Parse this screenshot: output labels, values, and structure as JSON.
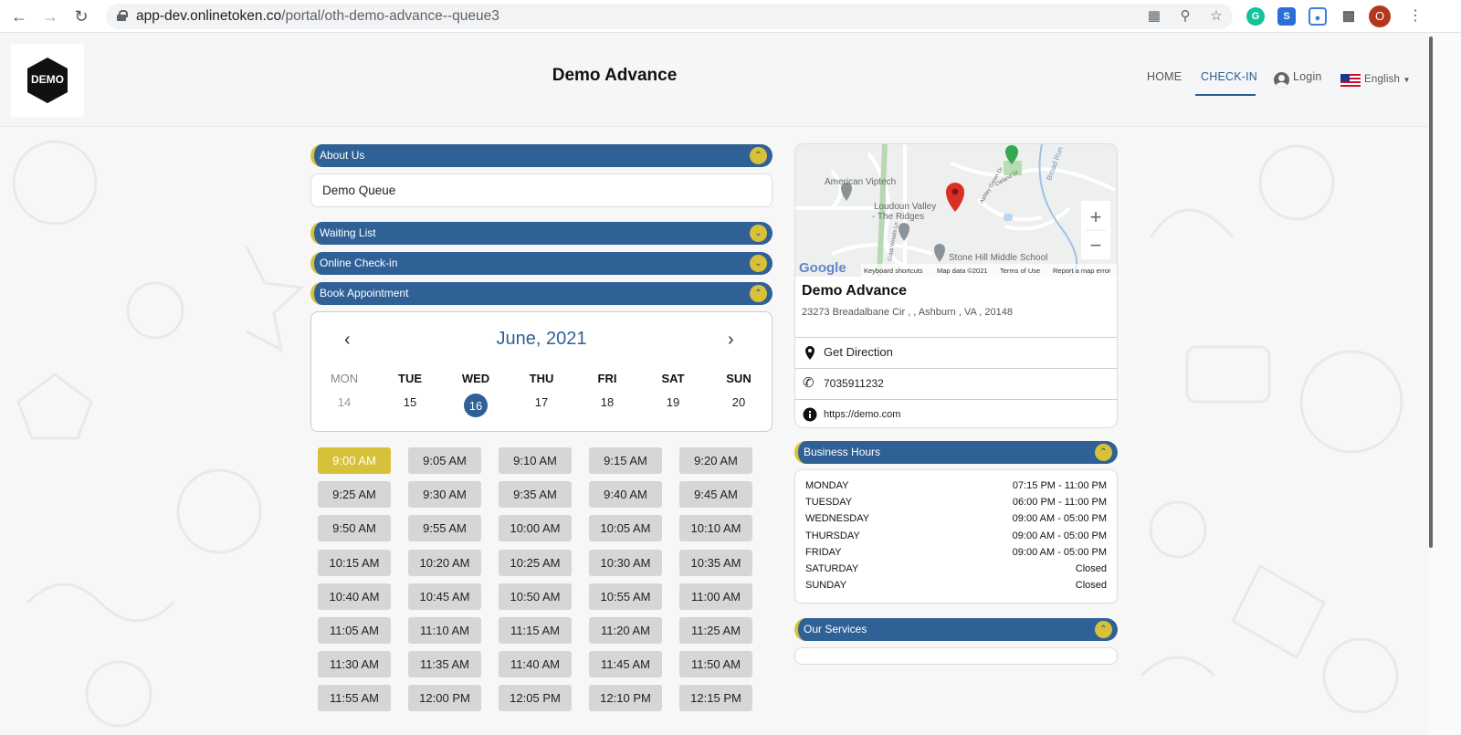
{
  "browser": {
    "url_host": "app-dev.onlinetoken.co",
    "url_path": "/portal/oth-demo-advance--queue3",
    "profile_initial": "O",
    "extensions": [
      "grammarly-icon",
      "s-extension-icon",
      "screencast-icon",
      "puzzle-icon"
    ]
  },
  "header": {
    "logo_text": "DEMO",
    "title": "Demo Advance",
    "nav": {
      "home": "HOME",
      "checkin": "CHECK-IN",
      "login": "Login",
      "language": "English"
    }
  },
  "left": {
    "about": {
      "label": "About Us",
      "content": "Demo Queue"
    },
    "waiting": {
      "label": "Waiting List"
    },
    "online": {
      "label": "Online Check-in"
    },
    "book": {
      "label": "Book Appointment"
    }
  },
  "calendar": {
    "month": "June, 2021",
    "days": [
      {
        "dow": "MON",
        "date": "14"
      },
      {
        "dow": "TUE",
        "date": "15"
      },
      {
        "dow": "WED",
        "date": "16"
      },
      {
        "dow": "THU",
        "date": "17"
      },
      {
        "dow": "FRI",
        "date": "18"
      },
      {
        "dow": "SAT",
        "date": "19"
      },
      {
        "dow": "SUN",
        "date": "20"
      }
    ],
    "selected": "16"
  },
  "slots": [
    "9:00 AM",
    "9:05 AM",
    "9:10 AM",
    "9:15 AM",
    "9:20 AM",
    "9:25 AM",
    "9:30 AM",
    "9:35 AM",
    "9:40 AM",
    "9:45 AM",
    "9:50 AM",
    "9:55 AM",
    "10:00 AM",
    "10:05 AM",
    "10:10 AM",
    "10:15 AM",
    "10:20 AM",
    "10:25 AM",
    "10:30 AM",
    "10:35 AM",
    "10:40 AM",
    "10:45 AM",
    "10:50 AM",
    "10:55 AM",
    "11:00 AM",
    "11:05 AM",
    "11:10 AM",
    "11:15 AM",
    "11:20 AM",
    "11:25 AM",
    "11:30 AM",
    "11:35 AM",
    "11:40 AM",
    "11:45 AM",
    "11:50 AM",
    "11:55 AM",
    "12:00 PM",
    "12:05 PM",
    "12:10 PM",
    "12:15 PM"
  ],
  "selected_slot": "9:00 AM",
  "map": {
    "labels": [
      "American Viptech",
      "Loudoun Valley",
      "- The Ridges",
      "Stone Hill Middle School",
      "Broad Run",
      "Cleland Dr",
      "Ashley Green Dr",
      "Cobb Woods Ln"
    ],
    "footer": [
      "Keyboard shortcuts",
      "Map data ©2021",
      "Terms of Use",
      "Report a map error"
    ],
    "logo": "Google"
  },
  "business": {
    "name": "Demo Advance",
    "address": "23273 Breadalbane Cir , , Ashburn , VA , 20148",
    "direction": "Get Direction",
    "phone": "7035911232",
    "website": "https://demo.com"
  },
  "hours": {
    "label": "Business Hours",
    "rows": [
      {
        "day": "MONDAY",
        "time": "07:15 PM - 11:00 PM"
      },
      {
        "day": "TUESDAY",
        "time": "06:00 PM - 11:00 PM"
      },
      {
        "day": "WEDNESDAY",
        "time": "09:00 AM - 05:00 PM"
      },
      {
        "day": "THURSDAY",
        "time": "09:00 AM - 05:00 PM"
      },
      {
        "day": "FRIDAY",
        "time": "09:00 AM - 05:00 PM"
      },
      {
        "day": "SATURDAY",
        "time": "Closed"
      },
      {
        "day": "SUNDAY",
        "time": "Closed"
      }
    ]
  },
  "services": {
    "label": "Our Services"
  },
  "colors": {
    "primary": "#2f6196",
    "accent": "#d8c13a"
  }
}
